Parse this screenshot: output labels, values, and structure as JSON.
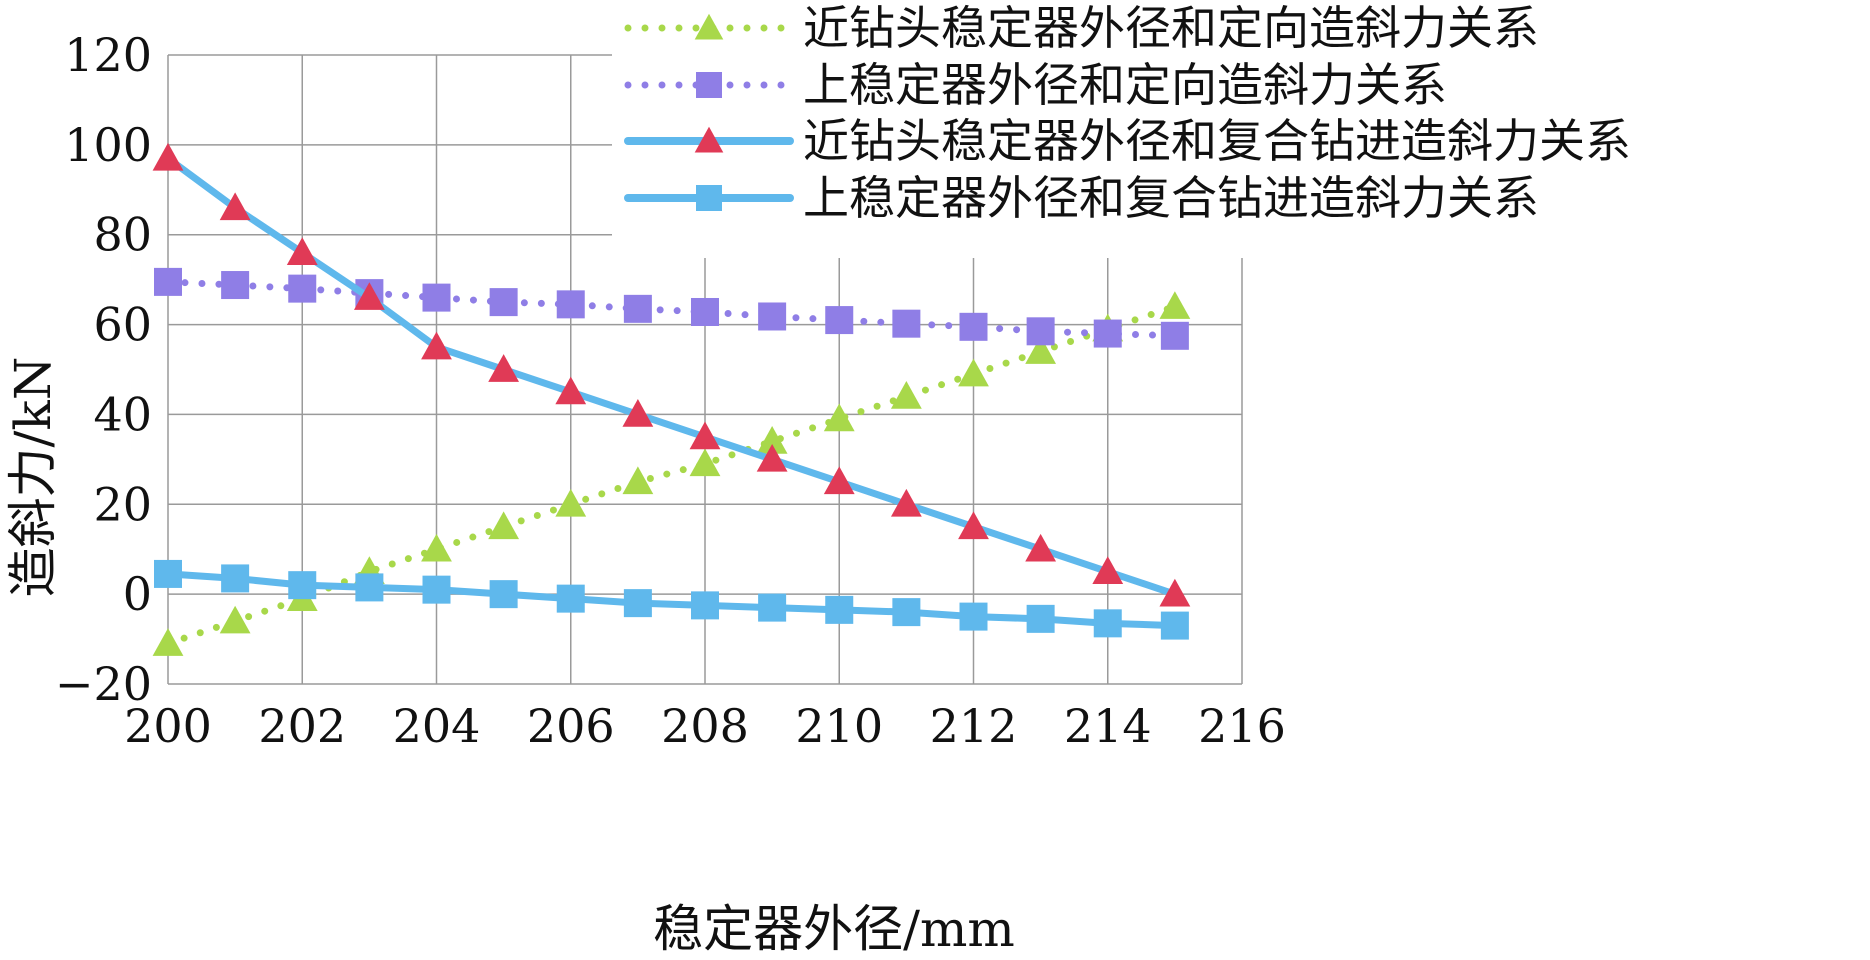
{
  "chart_data": {
    "type": "line",
    "title": "",
    "xlabel": "稳定器外径/mm",
    "ylabel": "造斜力/kN",
    "xlim": [
      200,
      216
    ],
    "ylim": [
      -20,
      120
    ],
    "x_ticks": [
      200,
      202,
      204,
      206,
      208,
      210,
      212,
      214,
      216
    ],
    "y_ticks": [
      -20,
      0,
      20,
      40,
      60,
      80,
      100,
      120
    ],
    "y_tick_labels": [
      "−20",
      "0",
      "20",
      "40",
      "60",
      "80",
      "100",
      "120"
    ],
    "grid": true,
    "legend_position": "top-right",
    "x": [
      200,
      201,
      202,
      203,
      204,
      205,
      206,
      207,
      208,
      209,
      210,
      211,
      212,
      213,
      214,
      215
    ],
    "series": [
      {
        "name": "近钻头稳定器外径和定向造斜力关系",
        "color": "#a8d84a",
        "line_style": "dotted",
        "marker": "triangle",
        "values": [
          -11,
          -6,
          -1,
          5,
          10,
          15,
          20,
          25,
          29,
          34,
          39,
          44,
          49,
          54,
          59,
          64
        ]
      },
      {
        "name": "上稳定器外径和定向造斜力关系",
        "color": "#8f7ee6",
        "line_style": "dotted",
        "marker": "square",
        "values": [
          69.5,
          68.8,
          68,
          67,
          66,
          65,
          64.5,
          63.5,
          62.8,
          61.8,
          61,
          60.2,
          59.5,
          58.5,
          58,
          57.5
        ]
      },
      {
        "name": "近钻头稳定器外径和复合钻进造斜力关系",
        "color": "#5fb8ec",
        "marker_color": "#e03a56",
        "line_style": "solid",
        "marker": "triangle",
        "values": [
          97,
          86,
          76,
          66,
          55,
          50,
          45,
          40,
          35,
          30,
          25,
          20,
          15,
          10,
          5,
          0
        ]
      },
      {
        "name": "上稳定器外径和复合钻进造斜力关系",
        "color": "#5fb8ec",
        "marker_color": "#5fb8ec",
        "line_style": "solid",
        "marker": "square",
        "values": [
          4.5,
          3.5,
          2,
          1.5,
          1,
          0,
          -1,
          -2,
          -2.5,
          -3,
          -3.5,
          -4,
          -5,
          -5.5,
          -6.5,
          -7
        ]
      }
    ]
  }
}
